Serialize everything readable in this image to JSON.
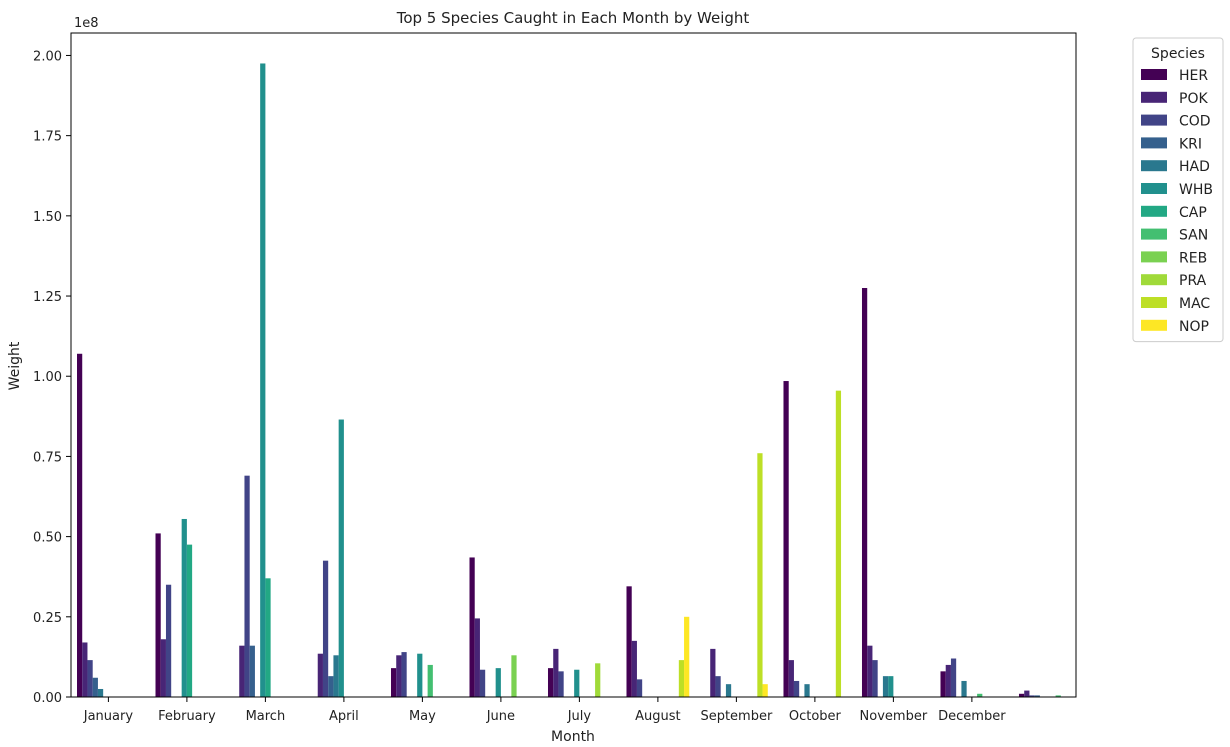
{
  "chart_data": {
    "type": "bar",
    "title": "Top 5 Species Caught in Each Month by Weight",
    "xlabel": "Month",
    "ylabel": "Weight",
    "y_offset_label": "1e8",
    "ylim": [
      0,
      2.07
    ],
    "y_unit_multiplier": 100000000,
    "yticks": [
      0.0,
      0.25,
      0.5,
      0.75,
      1.0,
      1.25,
      1.5,
      1.75,
      2.0
    ],
    "ytick_labels": [
      "0.00",
      "0.25",
      "0.50",
      "0.75",
      "1.00",
      "1.25",
      "1.50",
      "1.75",
      "2.00"
    ],
    "categories": [
      "January",
      "February",
      "March",
      "April",
      "May",
      "June",
      "July",
      "August",
      "September",
      "October",
      "November",
      "December"
    ],
    "legend": {
      "title": "Species",
      "placement": "outside-upper-right"
    },
    "grid": false,
    "series": [
      {
        "name": "HER",
        "color": "#440154",
        "values": [
          1.07,
          0.51,
          null,
          null,
          0.09,
          0.435,
          0.09,
          0.345,
          null,
          0.985,
          1.275,
          0.08
        ]
      },
      {
        "name": "POK",
        "color": "#482576",
        "values": [
          0.17,
          0.18,
          0.16,
          0.135,
          0.13,
          0.245,
          0.15,
          0.175,
          0.15,
          0.115,
          0.16,
          0.1
        ]
      },
      {
        "name": "COD",
        "color": "#414487",
        "values": [
          0.115,
          0.35,
          0.69,
          0.425,
          0.14,
          0.085,
          0.08,
          0.055,
          0.065,
          0.05,
          0.115,
          0.12
        ]
      },
      {
        "name": "KRI",
        "color": "#35608d",
        "values": [
          0.06,
          null,
          0.16,
          0.065,
          null,
          null,
          null,
          null,
          null,
          null,
          null,
          null
        ]
      },
      {
        "name": "HAD",
        "color": "#2a788e",
        "values": [
          0.025,
          null,
          null,
          0.13,
          null,
          null,
          null,
          null,
          0.04,
          0.04,
          0.065,
          0.05
        ]
      },
      {
        "name": "WHB",
        "color": "#21908d",
        "values": [
          null,
          0.555,
          1.975,
          0.865,
          0.135,
          0.09,
          0.085,
          null,
          null,
          null,
          0.065,
          null
        ]
      },
      {
        "name": "CAP",
        "color": "#22a884",
        "values": [
          null,
          0.475,
          0.37,
          null,
          null,
          null,
          null,
          null,
          null,
          null,
          null,
          null
        ]
      },
      {
        "name": "SAN",
        "color": "#43bf71",
        "values": [
          null,
          null,
          null,
          null,
          0.1,
          null,
          null,
          null,
          null,
          null,
          null,
          0.01
        ]
      },
      {
        "name": "REB",
        "color": "#7ad151",
        "values": [
          null,
          null,
          null,
          null,
          null,
          0.13,
          null,
          null,
          null,
          null,
          null,
          null
        ]
      },
      {
        "name": "PRA",
        "color": "#a0da39",
        "values": [
          null,
          null,
          null,
          null,
          null,
          null,
          0.105,
          null,
          null,
          null,
          null,
          null
        ]
      },
      {
        "name": "MAC",
        "color": "#bddf26",
        "values": [
          null,
          null,
          null,
          null,
          null,
          null,
          null,
          0.115,
          0.76,
          0.955,
          null,
          null
        ]
      },
      {
        "name": "NOP",
        "color": "#fde725",
        "values": [
          null,
          null,
          null,
          null,
          null,
          null,
          null,
          0.25,
          0.04,
          null,
          null,
          null
        ]
      }
    ],
    "trailing_unlabeled_group": [
      {
        "series": "HER",
        "value": 0.01
      },
      {
        "series": "POK",
        "value": 0.02
      },
      {
        "series": "COD",
        "value": 0.005
      },
      {
        "series": "KRI",
        "value": 0.005
      },
      {
        "series": "SAN",
        "value": 0.005
      }
    ]
  }
}
